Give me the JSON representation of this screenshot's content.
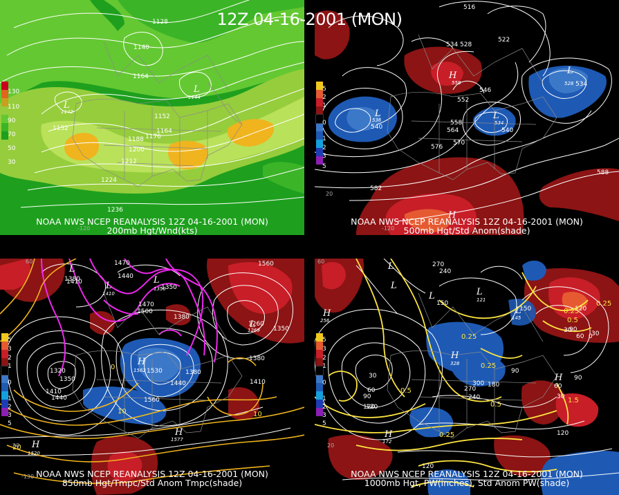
{
  "main_title": "12Z 04-16-2001 (MON)",
  "panels": [
    {
      "caption_line1": "NOAA NWS NCEP REANALYSIS 12Z 04-16-2001 (MON)",
      "caption_line2": "200mb Hgt/Wnd(kts)",
      "legend_colors": [
        "#c8001e",
        "#e0651e",
        "#c8a01e",
        "#96cd3c",
        "#64c832",
        "#3cb428",
        "#1ea01e"
      ],
      "legend_labels": [
        "130",
        "110",
        "90",
        "70",
        "50",
        "30"
      ],
      "centers": [
        {
          "sym": "L",
          "value": "1142"
        },
        {
          "sym": "L",
          "value": "1144"
        }
      ],
      "contour_labels": [
        "1128",
        "1140",
        "1164",
        "1152",
        "1152",
        "1164",
        "1176",
        "1188",
        "1200",
        "1212",
        "1224",
        "1236"
      ],
      "corner_labels": [
        "-120"
      ]
    },
    {
      "caption_line1": "NOAA NWS NCEP REANALYSIS 12Z 04-16-2001 (MON)",
      "caption_line2": "500mb Hgt/Std Anom(shade)",
      "legend_colors": [
        "#f0c81e",
        "#e65a32",
        "#c81e28",
        "#8c1414",
        "#000000",
        "#3c78c8",
        "#1e5ab4",
        "#14a0dc",
        "#1e3cb4",
        "#8c1eb4"
      ],
      "legend_labels": [
        "5",
        "2",
        "1",
        "0",
        "1",
        "2",
        "3",
        "5"
      ],
      "centers": [
        {
          "sym": "H",
          "value": "558"
        },
        {
          "sym": "L",
          "value": "536"
        },
        {
          "sym": "L",
          "value": "534"
        },
        {
          "sym": "L",
          "value": "528"
        },
        {
          "sym": "H",
          "value": ""
        }
      ],
      "contour_labels": [
        "516",
        "522",
        "528",
        "534",
        "546",
        "552",
        "558",
        "564",
        "570",
        "576",
        "582",
        "588",
        "540",
        "534",
        "540"
      ],
      "corner_labels": [
        "-120",
        "20"
      ]
    },
    {
      "caption_line1": "NOAA NWS NCEP REANALYSIS 12Z 04-16-2001 (MON)",
      "caption_line2": "850mb Hgt/Tmpc/Std Anom Tmpc(shade)",
      "legend_colors": [
        "#f0c81e",
        "#e65a32",
        "#c81e28",
        "#8c1414",
        "#000000",
        "#3c78c8",
        "#1e5ab4",
        "#14a0dc",
        "#1e3cb4",
        "#8c1eb4"
      ],
      "legend_labels": [
        "5",
        "3",
        "2",
        "1",
        "0",
        "1",
        "2",
        "3",
        "5"
      ],
      "centers": [
        {
          "sym": "L",
          "value": ""
        },
        {
          "sym": "L",
          "value": "1410"
        },
        {
          "sym": "L",
          "value": "1350"
        },
        {
          "sym": "H",
          "value": "1562"
        },
        {
          "sym": "L",
          "value": "1269"
        },
        {
          "sym": "H",
          "value": "1520"
        },
        {
          "sym": "H",
          "value": "1577"
        }
      ],
      "contour_labels": [
        "1380",
        "1410",
        "1440",
        "1470",
        "1470",
        "1500",
        "1350",
        "1380",
        "1560",
        "1320",
        "1350",
        "1410",
        "1440",
        "1530",
        "1380",
        "1440",
        "1560",
        "1380",
        "1410",
        "1260",
        "1350",
        "0",
        "10",
        "10",
        "20"
      ],
      "corner_labels": [
        "-130",
        "60",
        "20"
      ]
    },
    {
      "caption_line1": "NOAA NWS NCEP REANALYSIS 12Z 04-16-2001 (MON)",
      "caption_line2": "1000mb Hgt, PW(inches), Std Anom PW(shade)",
      "legend_colors": [
        "#f0c81e",
        "#e65a32",
        "#c81e28",
        "#8c1414",
        "#000000",
        "#3c78c8",
        "#1e5ab4",
        "#14a0dc",
        "#1e3cb4",
        "#8c1eb4"
      ],
      "legend_labels": [
        "5",
        "3",
        "2",
        "1",
        "0",
        "1",
        "2",
        "3",
        "5"
      ],
      "centers": [
        {
          "sym": "L",
          "value": ""
        },
        {
          "sym": "L",
          "value": ""
        },
        {
          "sym": "L",
          "value": ""
        },
        {
          "sym": "L",
          "value": "121"
        },
        {
          "sym": "H",
          "value": "328"
        },
        {
          "sym": "H",
          "value": "256"
        },
        {
          "sym": "H",
          "value": "172"
        },
        {
          "sym": "L",
          "value": "145"
        },
        {
          "sym": "H",
          "value": ""
        }
      ],
      "contour_labels": [
        "270",
        "240",
        "150",
        "150",
        "120",
        "90",
        "60",
        "30",
        "0",
        "30",
        "60",
        "90",
        "120",
        "180",
        "270",
        "300",
        "240",
        "90",
        "60",
        "30",
        "120",
        "120",
        "120",
        "30",
        "90"
      ],
      "yellow_labels": [
        "0.25",
        "0.25",
        "0.5",
        "0.5",
        "0.25",
        "0.5",
        "1.5",
        "0.25",
        "0.25"
      ],
      "corner_labels": [
        "60",
        "20"
      ]
    }
  ]
}
